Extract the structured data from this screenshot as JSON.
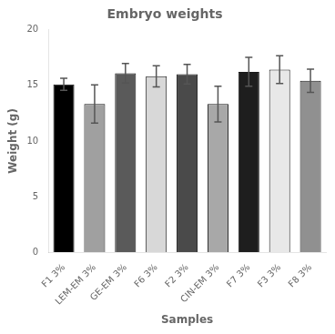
{
  "chart_data": {
    "type": "bar",
    "title": "Embryo weights",
    "xlabel": "Samples",
    "ylabel": "Weight (g)",
    "categories": [
      "F1 3%",
      "LEM-EM 3%",
      "GE-EM 3%",
      "F6 3%",
      "F2 3%",
      "CIN-EM 3%",
      "F7 3%",
      "F3 3%",
      "F8 3%"
    ],
    "values": [
      15.1,
      13.33,
      16.1,
      15.82,
      16.02,
      13.32,
      16.22,
      16.42,
      15.42
    ],
    "errors": [
      0.55,
      1.72,
      0.88,
      0.95,
      0.88,
      1.6,
      1.3,
      1.25,
      1.05
    ],
    "colors": [
      "#000000",
      "#a0a0a0",
      "#5a5a5a",
      "#d8d8d8",
      "#4a4a4a",
      "#a8a8a8",
      "#1e1e1e",
      "#e8e8e8",
      "#909090"
    ],
    "ylim": [
      0,
      20
    ],
    "yticks": [
      0,
      5,
      10,
      15,
      20
    ],
    "grid": false
  }
}
